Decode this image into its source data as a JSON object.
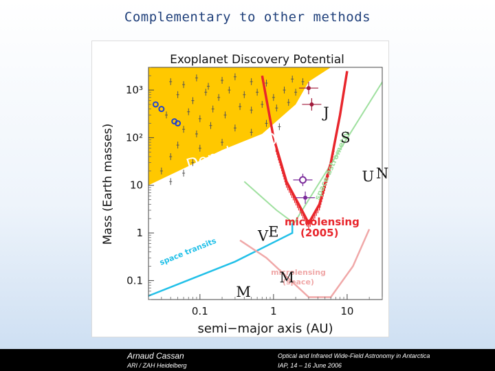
{
  "slide": {
    "title": "Complementary to other methods"
  },
  "footer": {
    "author": "Arnaud Cassan",
    "affiliation": "ARI / ZAH Heidelberg",
    "conference": "Optical and Infrared Wide-Field Astronomy in Antarctica",
    "venue_date": "IAP,  14 – 16 June 2006"
  },
  "chart_data": {
    "type": "scatter",
    "title": "Exoplanet Discovery Potential",
    "xlabel": "semi−major axis (AU)",
    "ylabel": "Mass (Earth masses)",
    "x_scale": "log",
    "y_scale": "log",
    "xlim": [
      0.02,
      30
    ],
    "ylim": [
      0.04,
      3000
    ],
    "x_ticks": [
      {
        "value": 0.1,
        "label": "0.1"
      },
      {
        "value": 1,
        "label": "1"
      },
      {
        "value": 10,
        "label": "10"
      }
    ],
    "y_ticks": [
      {
        "value": 0.1,
        "label": "0.1"
      },
      {
        "value": 1,
        "label": "1"
      },
      {
        "value": 10,
        "label": "10"
      },
      {
        "value": 100,
        "label": "10²"
      },
      {
        "value": 1000,
        "label": "10³"
      }
    ],
    "regions": [
      {
        "label": "Doppler (2005)",
        "color": "#ffc800"
      },
      {
        "label": "microlensing (2005)",
        "color": "#e8262c"
      },
      {
        "label": "space astrometry",
        "color": "#9fe09f"
      },
      {
        "label": "space transits",
        "color": "#22c0e8"
      },
      {
        "label": "microlensing (space)",
        "color": "#f0a8a8"
      }
    ],
    "solar_system_planets": [
      {
        "label": "V",
        "x": 0.72,
        "y": 0.82
      },
      {
        "label": "E",
        "x": 1.0,
        "y": 1.0
      },
      {
        "label": "M",
        "x": 1.52,
        "y": 0.11
      },
      {
        "label": "M",
        "x": 0.39,
        "y": 0.055
      },
      {
        "label": "J",
        "x": 5.2,
        "y": 318
      },
      {
        "label": "S",
        "x": 9.5,
        "y": 95
      },
      {
        "label": "U",
        "x": 19.2,
        "y": 14.5
      },
      {
        "label": "N",
        "x": 30,
        "y": 17
      }
    ],
    "microlensing_detections": [
      {
        "x": 3.0,
        "y": 1100
      },
      {
        "x": 3.3,
        "y": 500
      },
      {
        "x": 2.5,
        "y": 13
      },
      {
        "x": 2.7,
        "y": 5.5
      }
    ],
    "transit_detections": [
      {
        "x": 0.025,
        "y": 500
      },
      {
        "x": 0.03,
        "y": 400
      },
      {
        "x": 0.045,
        "y": 220
      },
      {
        "x": 0.05,
        "y": 200
      }
    ],
    "doppler_detections": [
      {
        "x": 0.04,
        "y": 1500
      },
      {
        "x": 0.06,
        "y": 1300
      },
      {
        "x": 0.09,
        "y": 1800
      },
      {
        "x": 0.13,
        "y": 1200
      },
      {
        "x": 0.2,
        "y": 1600
      },
      {
        "x": 0.3,
        "y": 1900
      },
      {
        "x": 0.5,
        "y": 1500
      },
      {
        "x": 0.8,
        "y": 1400
      },
      {
        "x": 0.05,
        "y": 800
      },
      {
        "x": 0.08,
        "y": 600
      },
      {
        "x": 0.12,
        "y": 900
      },
      {
        "x": 0.18,
        "y": 700
      },
      {
        "x": 0.25,
        "y": 1000
      },
      {
        "x": 0.4,
        "y": 800
      },
      {
        "x": 0.6,
        "y": 900
      },
      {
        "x": 1.0,
        "y": 700
      },
      {
        "x": 1.4,
        "y": 1000
      },
      {
        "x": 2.0,
        "y": 900
      },
      {
        "x": 0.035,
        "y": 300
      },
      {
        "x": 0.07,
        "y": 350
      },
      {
        "x": 0.1,
        "y": 250
      },
      {
        "x": 0.15,
        "y": 400
      },
      {
        "x": 0.22,
        "y": 300
      },
      {
        "x": 0.35,
        "y": 450
      },
      {
        "x": 0.5,
        "y": 380
      },
      {
        "x": 0.7,
        "y": 500
      },
      {
        "x": 1.1,
        "y": 420
      },
      {
        "x": 1.6,
        "y": 550
      },
      {
        "x": 0.06,
        "y": 150
      },
      {
        "x": 0.09,
        "y": 120
      },
      {
        "x": 0.14,
        "y": 180
      },
      {
        "x": 0.3,
        "y": 160
      },
      {
        "x": 0.5,
        "y": 130
      },
      {
        "x": 0.8,
        "y": 200
      },
      {
        "x": 1.2,
        "y": 170
      },
      {
        "x": 0.05,
        "y": 70
      },
      {
        "x": 0.1,
        "y": 60
      },
      {
        "x": 0.2,
        "y": 80
      },
      {
        "x": 0.04,
        "y": 40
      },
      {
        "x": 0.08,
        "y": 30
      },
      {
        "x": 0.03,
        "y": 20
      },
      {
        "x": 0.06,
        "y": 18
      },
      {
        "x": 0.04,
        "y": 12
      },
      {
        "x": 2.5,
        "y": 1500
      },
      {
        "x": 1.8,
        "y": 1700
      }
    ]
  }
}
